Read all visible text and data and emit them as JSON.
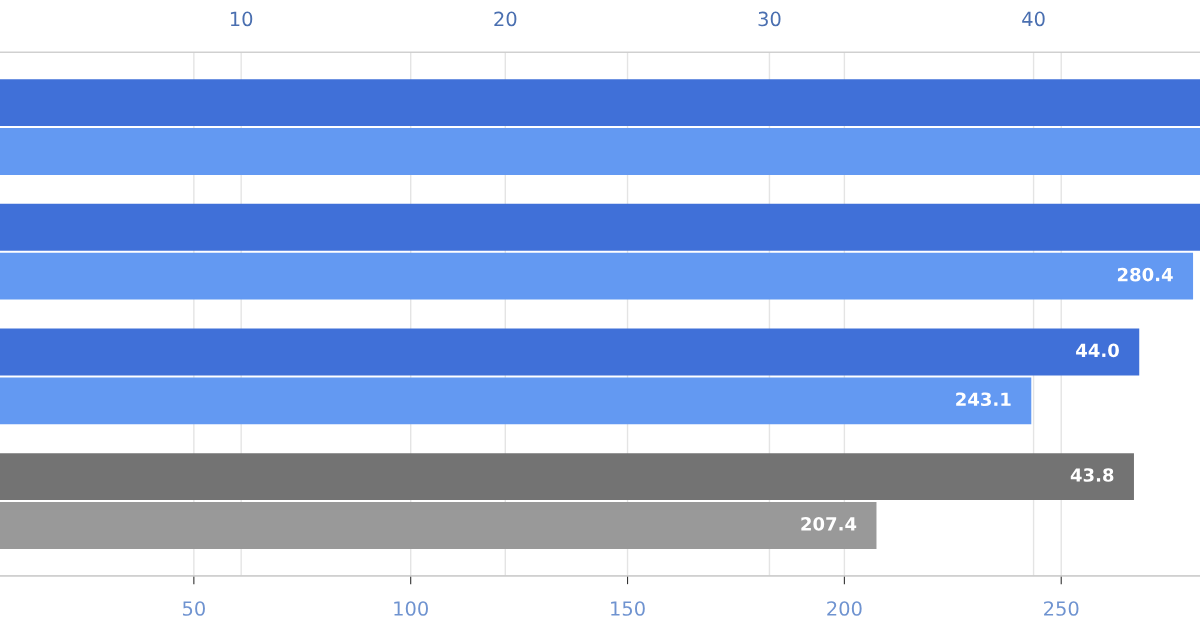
{
  "chart_data": {
    "type": "bar",
    "orientation": "horizontal",
    "categories": [
      null,
      null,
      null,
      null
    ],
    "series": [
      {
        "axis": "x2",
        "colors": [
          "#4070d8",
          "#4070d8",
          "#4070d8",
          "#737373"
        ],
        "values": [
          46.3,
          46.3,
          44.0,
          43.8
        ],
        "value_labels": [
          null,
          null,
          "44.0",
          "43.8"
        ]
      },
      {
        "colors": [
          "#6399f2",
          "#6399f2",
          "#6399f2",
          "#999999"
        ],
        "values": [
          282,
          280.4,
          243.1,
          207.4
        ],
        "value_labels": [
          null,
          "280.4",
          "243.1",
          "207.4"
        ]
      }
    ],
    "xlim": [
      5.3,
      282
    ],
    "xticks": [
      50,
      100,
      150,
      200,
      250
    ],
    "x2lim": [
      0.87,
      46.3
    ],
    "x2ticks": [
      10,
      20,
      30,
      40
    ],
    "grid": "x"
  }
}
